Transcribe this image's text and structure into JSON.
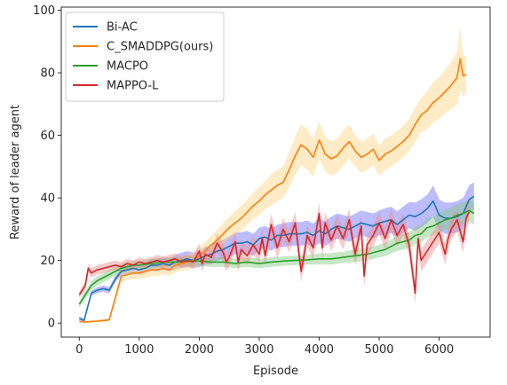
{
  "chart_data": {
    "type": "line",
    "xlabel": "Episode",
    "ylabel": "Reward of leader agent",
    "xlim": [
      -300,
      6850
    ],
    "ylim": [
      -4.5,
      101
    ],
    "xticks": [
      0,
      1000,
      2000,
      3000,
      4000,
      5000,
      6000
    ],
    "yticks": [
      0,
      20,
      40,
      60,
      80,
      100
    ],
    "grid": false,
    "legend_position": "top-left",
    "series": [
      {
        "name": "Bi-AC",
        "color": "#1f77b4",
        "band_color": "#6b6bff",
        "x": [
          0,
          80,
          200,
          300,
          400,
          500,
          600,
          700,
          800,
          900,
          1000,
          1100,
          1200,
          1300,
          1400,
          1500,
          1600,
          1700,
          1800,
          1900,
          2000,
          2100,
          2200,
          2300,
          2400,
          2500,
          2600,
          2700,
          2800,
          2900,
          3000,
          3100,
          3200,
          3300,
          3400,
          3500,
          3600,
          3700,
          3800,
          3900,
          4000,
          4100,
          4200,
          4300,
          4400,
          4500,
          4600,
          4700,
          4800,
          4900,
          5000,
          5100,
          5200,
          5300,
          5400,
          5500,
          5600,
          5700,
          5800,
          5900,
          6000,
          6100,
          6200,
          6300,
          6400,
          6500,
          6580
        ],
        "y": [
          1.5,
          0.8,
          9.5,
          10.5,
          11.0,
          10.5,
          14.0,
          16.5,
          17.0,
          17.5,
          17.0,
          17.5,
          18.5,
          18.5,
          19.0,
          18.5,
          19.5,
          20.0,
          20.5,
          20.0,
          20.5,
          21.5,
          22.0,
          23.0,
          23.5,
          24.5,
          25.5,
          25.5,
          26.0,
          25.0,
          27.0,
          27.5,
          26.5,
          28.0,
          28.0,
          28.5,
          28.5,
          28.5,
          29.0,
          28.0,
          29.5,
          28.5,
          30.0,
          31.0,
          30.5,
          30.0,
          31.0,
          32.0,
          31.5,
          31.0,
          32.0,
          32.5,
          33.0,
          31.5,
          33.0,
          34.5,
          34.0,
          35.0,
          36.5,
          39.0,
          34.5,
          33.5,
          33.5,
          34.0,
          35.0,
          39.5,
          40.5
        ],
        "band": [
          0.6,
          0.6,
          0.8,
          1.0,
          1.0,
          1.0,
          1.0,
          1.2,
          1.2,
          1.5,
          1.5,
          1.5,
          1.8,
          2.0,
          2.0,
          2.0,
          2.2,
          2.5,
          2.5,
          2.5,
          2.5,
          2.8,
          3.0,
          3.0,
          3.2,
          3.2,
          3.5,
          3.5,
          3.5,
          3.5,
          3.5,
          3.5,
          3.5,
          3.5,
          3.8,
          3.8,
          3.8,
          3.8,
          3.8,
          3.8,
          4.0,
          4.0,
          4.0,
          4.0,
          4.0,
          4.0,
          4.0,
          4.0,
          4.0,
          4.0,
          4.0,
          4.2,
          4.2,
          4.2,
          4.2,
          4.2,
          4.5,
          4.5,
          4.5,
          5.0,
          5.0,
          5.0,
          5.0,
          5.0,
          5.0,
          4.5,
          4.5
        ]
      },
      {
        "name": "C_SMADDPG(ours)",
        "color": "#ff7f0e",
        "band_color": "#ffd27f",
        "x": [
          0,
          100,
          200,
          300,
          400,
          500,
          600,
          700,
          800,
          900,
          1000,
          1100,
          1200,
          1300,
          1400,
          1500,
          1600,
          1700,
          1800,
          1900,
          2000,
          2100,
          2200,
          2300,
          2400,
          2500,
          2600,
          2700,
          2800,
          2900,
          3000,
          3100,
          3200,
          3300,
          3400,
          3500,
          3600,
          3700,
          3800,
          3900,
          4000,
          4100,
          4200,
          4300,
          4400,
          4500,
          4600,
          4700,
          4800,
          4900,
          5000,
          5100,
          5200,
          5300,
          5400,
          5500,
          5600,
          5700,
          5800,
          5900,
          6000,
          6100,
          6200,
          6300,
          6350,
          6400,
          6450
        ],
        "y": [
          0.5,
          0.3,
          0.5,
          0.6,
          0.8,
          1.0,
          8.0,
          15.0,
          15.5,
          16.0,
          16.0,
          16.5,
          17.0,
          17.0,
          17.5,
          17.0,
          18.5,
          19.0,
          19.5,
          20.0,
          21.5,
          23.0,
          25.0,
          26.5,
          28.5,
          30.5,
          32.0,
          33.5,
          35.5,
          37.5,
          39.0,
          41.0,
          42.5,
          44.0,
          45.0,
          49.0,
          53.5,
          57.0,
          55.5,
          53.0,
          58.5,
          54.0,
          52.5,
          53.5,
          56.0,
          58.0,
          55.0,
          53.0,
          54.0,
          55.5,
          52.0,
          54.0,
          55.0,
          56.5,
          58.0,
          60.0,
          63.5,
          66.5,
          68.0,
          70.5,
          72.0,
          74.0,
          76.0,
          78.5,
          84.5,
          79.0,
          79.5
        ],
        "band": [
          0.3,
          0.3,
          0.3,
          0.4,
          0.5,
          0.6,
          1.5,
          1.8,
          1.8,
          1.8,
          2.0,
          2.0,
          2.0,
          2.0,
          2.0,
          2.0,
          2.2,
          2.2,
          2.5,
          2.5,
          2.8,
          3.0,
          3.0,
          3.2,
          3.5,
          3.5,
          3.8,
          4.0,
          4.0,
          4.2,
          4.5,
          4.5,
          5.0,
          5.0,
          5.0,
          5.5,
          6.0,
          6.5,
          6.5,
          6.0,
          6.0,
          5.5,
          5.5,
          5.5,
          5.5,
          5.5,
          5.0,
          5.0,
          5.0,
          5.0,
          4.8,
          5.0,
          5.0,
          5.0,
          5.0,
          5.2,
          5.5,
          5.5,
          6.0,
          6.5,
          6.5,
          7.0,
          7.5,
          8.5,
          10.0,
          6.5,
          6.0
        ]
      },
      {
        "name": "MACPO",
        "color": "#2ca02c",
        "band_color": "#7fc97f",
        "x": [
          0,
          100,
          200,
          300,
          400,
          500,
          600,
          700,
          800,
          900,
          1000,
          1200,
          1400,
          1600,
          1800,
          2000,
          2200,
          2400,
          2600,
          2800,
          3000,
          3200,
          3400,
          3600,
          3800,
          4000,
          4200,
          4400,
          4600,
          4800,
          5000,
          5100,
          5200,
          5300,
          5400,
          5500,
          5600,
          5700,
          5800,
          5900,
          6000,
          6100,
          6200,
          6300,
          6400,
          6500,
          6580
        ],
        "y": [
          6.0,
          9.0,
          12.0,
          13.5,
          14.5,
          15.5,
          16.5,
          17.5,
          18.0,
          18.5,
          18.5,
          19.0,
          19.5,
          19.5,
          19.8,
          19.8,
          19.5,
          19.5,
          19.0,
          19.5,
          19.0,
          19.5,
          19.8,
          20.0,
          20.2,
          20.5,
          20.5,
          21.0,
          21.5,
          22.0,
          23.0,
          23.5,
          24.5,
          25.5,
          26.0,
          26.5,
          28.0,
          28.5,
          30.5,
          31.0,
          32.0,
          33.0,
          33.5,
          34.5,
          35.0,
          36.0,
          35.0
        ],
        "band": [
          1.0,
          1.2,
          1.5,
          1.5,
          1.5,
          1.5,
          1.5,
          1.5,
          1.5,
          1.5,
          1.5,
          1.5,
          1.5,
          1.5,
          1.5,
          1.5,
          1.5,
          1.5,
          1.5,
          1.5,
          1.5,
          1.5,
          1.5,
          1.5,
          1.5,
          1.8,
          1.8,
          1.8,
          2.0,
          2.0,
          2.0,
          2.2,
          2.2,
          2.5,
          2.5,
          2.5,
          2.8,
          2.8,
          3.0,
          3.0,
          3.2,
          3.2,
          3.5,
          3.5,
          3.5,
          3.5,
          3.5
        ]
      },
      {
        "name": "MAPPO-L",
        "color": "#d62728",
        "band_color": "#f08c8c",
        "x": [
          0,
          100,
          150,
          200,
          300,
          400,
          500,
          600,
          700,
          800,
          900,
          1000,
          1100,
          1200,
          1300,
          1400,
          1500,
          1600,
          1700,
          1800,
          1900,
          2000,
          2050,
          2100,
          2200,
          2300,
          2400,
          2450,
          2500,
          2600,
          2650,
          2700,
          2800,
          2900,
          3000,
          3050,
          3100,
          3200,
          3300,
          3400,
          3500,
          3600,
          3700,
          3750,
          3800,
          3900,
          4000,
          4050,
          4100,
          4200,
          4300,
          4400,
          4500,
          4600,
          4700,
          4750,
          4800,
          4900,
          5000,
          5100,
          5200,
          5300,
          5400,
          5500,
          5600,
          5650,
          5700,
          5800,
          5900,
          6000,
          6100,
          6150,
          6200,
          6300,
          6400,
          6450,
          6500
        ],
        "y": [
          9.0,
          12.0,
          17.5,
          16.0,
          17.0,
          17.5,
          18.0,
          18.5,
          18.0,
          19.0,
          18.5,
          19.5,
          19.0,
          19.5,
          20.0,
          19.5,
          20.0,
          20.5,
          19.5,
          20.0,
          19.5,
          23.0,
          19.0,
          22.0,
          21.0,
          25.5,
          22.5,
          19.5,
          21.0,
          26.0,
          19.5,
          23.5,
          21.5,
          25.0,
          22.0,
          27.0,
          21.5,
          31.5,
          24.0,
          30.0,
          26.0,
          32.0,
          16.5,
          22.0,
          28.0,
          24.0,
          35.0,
          24.0,
          32.0,
          26.5,
          31.0,
          27.0,
          33.0,
          22.0,
          31.0,
          15.0,
          25.0,
          28.0,
          32.0,
          27.0,
          33.0,
          28.0,
          31.5,
          25.0,
          9.5,
          27.0,
          20.0,
          23.0,
          26.0,
          29.0,
          22.0,
          27.0,
          30.0,
          33.0,
          26.0,
          33.5,
          35.5
        ],
        "band": [
          1.0,
          1.5,
          1.5,
          1.5,
          1.5,
          1.5,
          1.5,
          1.5,
          1.5,
          1.5,
          1.5,
          1.5,
          1.5,
          1.5,
          1.8,
          1.8,
          1.8,
          1.8,
          1.8,
          2.0,
          2.0,
          2.5,
          2.5,
          2.5,
          2.5,
          3.0,
          3.0,
          3.0,
          3.0,
          3.0,
          3.0,
          3.0,
          3.0,
          3.0,
          3.0,
          3.0,
          3.0,
          3.5,
          3.5,
          3.5,
          3.5,
          3.5,
          3.5,
          3.5,
          3.5,
          3.5,
          3.5,
          3.5,
          3.5,
          3.5,
          3.5,
          3.5,
          3.5,
          3.5,
          3.5,
          3.5,
          3.5,
          3.5,
          3.5,
          3.5,
          3.5,
          3.5,
          3.5,
          3.5,
          3.5,
          3.5,
          3.5,
          3.5,
          3.5,
          3.5,
          3.5,
          3.5,
          3.5,
          3.5,
          3.5,
          3.5,
          3.5
        ]
      }
    ]
  }
}
